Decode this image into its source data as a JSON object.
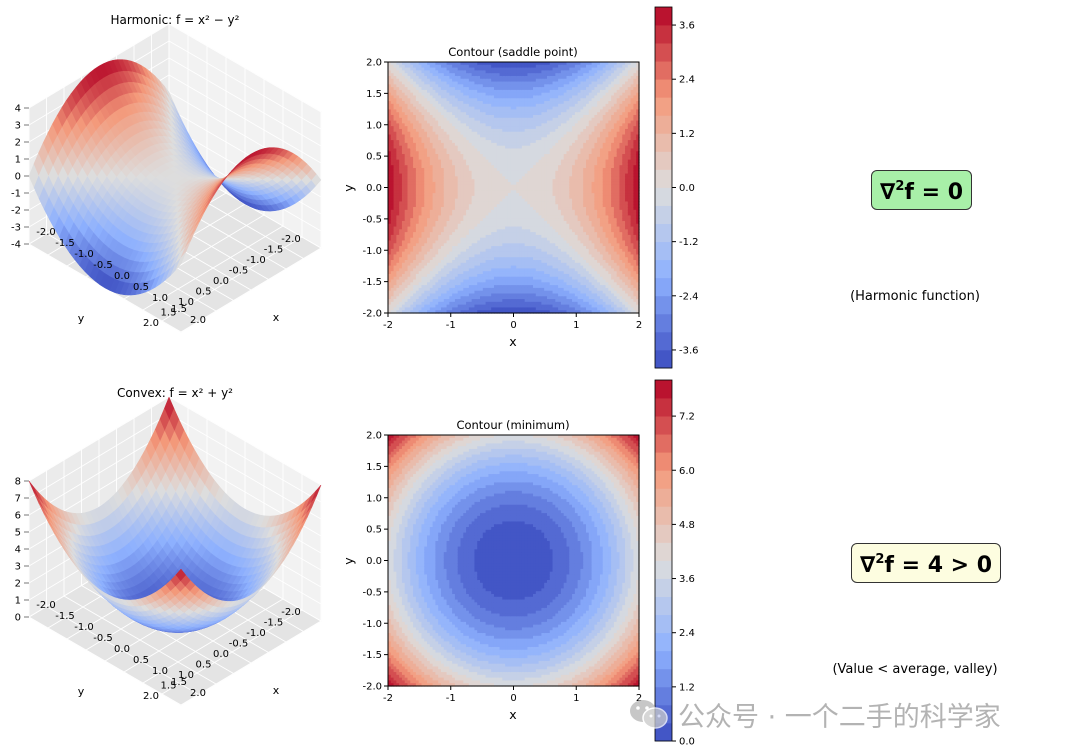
{
  "chart_data": [
    {
      "type": "surface",
      "title": "Harmonic: f = x² − y²",
      "function": "x^2 - y^2",
      "xlabel": "x",
      "ylabel": "y",
      "xlim": [
        -2,
        2
      ],
      "ylim": [
        -2,
        2
      ],
      "zlim": [
        -4,
        4
      ],
      "x_ticks": [
        "-2.0",
        "-1.5",
        "-1.0",
        "-0.5",
        "0.0",
        "0.5",
        "1.0",
        "1.5",
        "2.0"
      ],
      "y_ticks": [
        "-2.0",
        "-1.5",
        "-1.0",
        "-0.5",
        "0.0",
        "0.5",
        "1.0",
        "1.5",
        "2.0"
      ],
      "z_ticks": [
        "4",
        "3",
        "2",
        "1",
        "0",
        "-1",
        "-2",
        "-3",
        "-4"
      ],
      "colormap": "coolwarm"
    },
    {
      "type": "contour",
      "title": "Contour (saddle point)",
      "function": "x^2 - y^2",
      "xlabel": "x",
      "ylabel": "y",
      "xlim": [
        -2,
        2
      ],
      "ylim": [
        -2,
        2
      ],
      "x_ticks": [
        "-2",
        "-1",
        "0",
        "1",
        "2"
      ],
      "y_ticks": [
        "2.0",
        "1.5",
        "1.0",
        "0.5",
        "0.0",
        "-0.5",
        "-1.0",
        "-1.5",
        "-2.0"
      ],
      "colorbar": {
        "range": [
          -4,
          4
        ],
        "ticks": [
          "3.6",
          "2.4",
          "1.2",
          "0.0",
          "-1.2",
          "-2.4",
          "-3.6"
        ]
      },
      "colormap": "coolwarm"
    },
    {
      "type": "surface",
      "title": "Convex: f = x² + y²",
      "function": "x^2 + y^2",
      "xlabel": "x",
      "ylabel": "y",
      "xlim": [
        -2,
        2
      ],
      "ylim": [
        -2,
        2
      ],
      "zlim": [
        0,
        8
      ],
      "x_ticks": [
        "-2.0",
        "-1.5",
        "-1.0",
        "-0.5",
        "0.0",
        "0.5",
        "1.0",
        "1.5",
        "2.0"
      ],
      "y_ticks": [
        "-2.0",
        "-1.5",
        "-1.0",
        "-0.5",
        "0.0",
        "0.5",
        "1.0",
        "1.5",
        "2.0"
      ],
      "z_ticks": [
        "8",
        "7",
        "6",
        "5",
        "4",
        "3",
        "2",
        "1",
        "0"
      ],
      "colormap": "coolwarm"
    },
    {
      "type": "contour",
      "title": "Contour (minimum)",
      "function": "x^2 + y^2",
      "xlabel": "x",
      "ylabel": "y",
      "xlim": [
        -2,
        2
      ],
      "ylim": [
        -2,
        2
      ],
      "x_ticks": [
        "-2",
        "-1",
        "0",
        "1",
        "2"
      ],
      "y_ticks": [
        "2.0",
        "1.5",
        "1.0",
        "0.5",
        "0.0",
        "-0.5",
        "-1.0",
        "-1.5",
        "-2.0"
      ],
      "colorbar": {
        "range": [
          0,
          8
        ],
        "ticks": [
          "7.2",
          "6.0",
          "4.8",
          "3.6",
          "2.4",
          "1.2",
          "0.0"
        ]
      },
      "colormap": "coolwarm"
    }
  ],
  "annotations": {
    "harmonic": {
      "equation_main": "∇",
      "equation_sup": "2",
      "equation_rest": "f = 0",
      "note": "(Harmonic function)",
      "box_color": "#a8f0a8"
    },
    "convex": {
      "equation_main": "∇",
      "equation_sup": "2",
      "equation_rest": "f = 4 > 0",
      "note": "(Value < average, valley)",
      "box_color": "#fdfde0"
    }
  },
  "watermark": {
    "text": "公众号 · 一个二手的科学家",
    "icon": "wechat-icon"
  }
}
